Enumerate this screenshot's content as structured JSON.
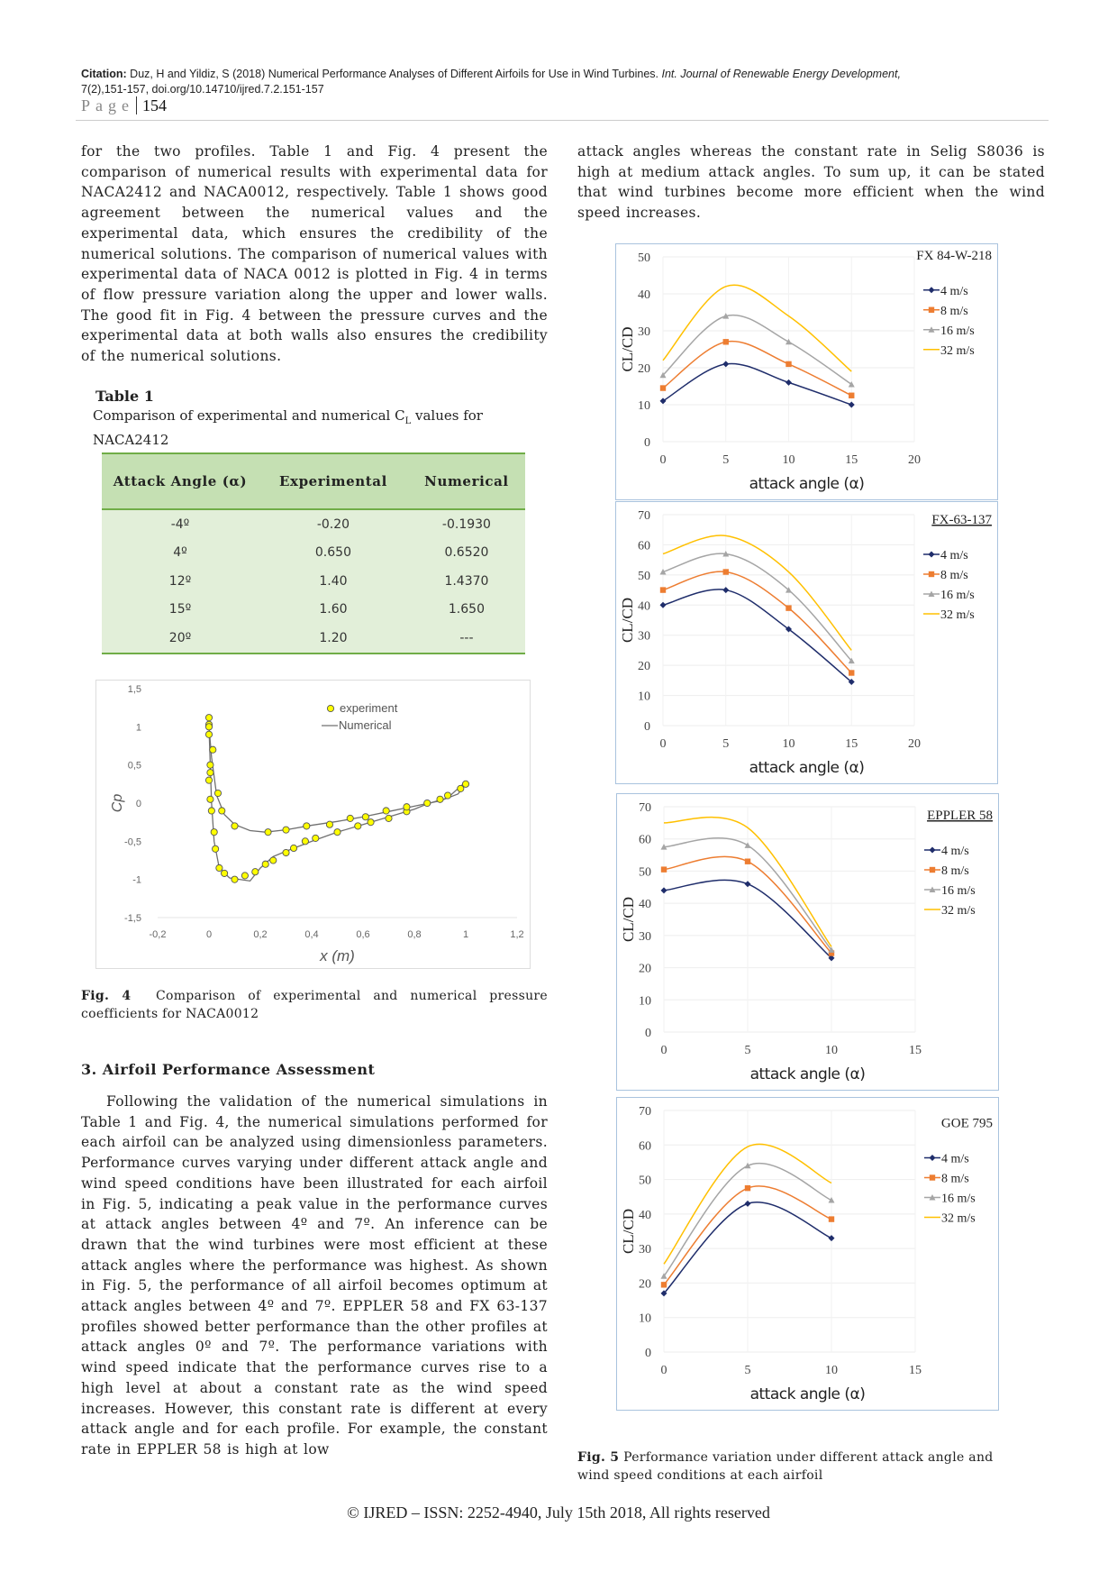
{
  "header": {
    "citation_label": "Citation:",
    "citation_text": "Duz, H and Yildiz, S (2018) Numerical Performance Analyses of Different Airfoils for Use in Wind Turbines.",
    "journal": "Int. Journal of Renewable Energy Development,",
    "citation_tail": "7(2),151-157, doi.org/10.14710/ijred.7.2.151-157",
    "page_label": "Page",
    "page_number": "154"
  },
  "left_paragraph": "for the two profiles. Table 1 and Fig. 4 present the comparison of numerical results with experimental data for NACA2412 and NACA0012, respectively. Table 1 shows good agreement between the numerical values and the experimental data, which ensures the credibility of the numerical solutions. The comparison of numerical values with experimental data of NACA 0012 is plotted in Fig. 4 in terms of flow pressure variation along the upper and lower walls. The good fit in Fig. 4 between the pressure curves and the experimental data at both walls also ensures the credibility of the numerical solutions.",
  "table1": {
    "label": "Table 1",
    "caption": "Comparison of experimental and numerical C",
    "caption_sub": "L",
    "caption_tail": " values for NACA2412",
    "headers": [
      "Attack Angle (α)",
      "Experimental",
      "Numerical"
    ],
    "rows": [
      [
        "-4º",
        "-0.20",
        "-0.1930"
      ],
      [
        "4º",
        "0.650",
        "0.6520"
      ],
      [
        "12º",
        "1.40",
        "1.4370"
      ],
      [
        "15º",
        "1.60",
        "1.650"
      ],
      [
        "20º",
        "1.20",
        "---"
      ]
    ]
  },
  "fig4_caption_label": "Fig. 4",
  "fig4_caption": "Comparison of experimental and numerical pressure coefficients for NACA0012",
  "section_heading": "3. Airfoil Performance Assessment",
  "section_paragraph": "Following the validation of the numerical simulations in Table 1 and Fig. 4, the numerical simulations performed for each airfoil can be analyzed using dimensionless parameters. Performance curves varying under different attack angle and wind speed conditions have been illustrated for each airfoil in Fig. 5, indicating a peak value in the performance curves at attack angles between 4º and 7º. An inference can be drawn that the wind turbines were most efficient at these attack angles where the performance was highest. As shown in Fig. 5, the performance of all airfoil becomes optimum at attack angles between 4º and 7º. EPPLER 58 and FX 63-137 profiles showed better performance than the other profiles at attack angles 0º and 7º. The performance variations with wind speed indicate that the performance curves rise to a high level at about a constant rate as the wind speed increases. However, this constant rate is different at every attack angle and for each profile. For example, the constant rate in EPPLER 58 is high at low",
  "right_paragraph": "attack angles whereas the constant rate in Selig S8036 is high at medium attack angles. To sum up, it can be stated that wind turbines become more efficient when the wind speed increases.",
  "fig5_caption_label": "Fig. 5",
  "fig5_caption": "Performance variation under different attack angle and wind speed conditions at each airfoil",
  "footer": "© IJRED – ISSN: 2252-4940, July 15th 2018, All rights reserved",
  "chart_data": [
    {
      "type": "scatter",
      "xlabel": "x (m)",
      "ylabel": "Cp",
      "xlim": [
        -0.2,
        1.2
      ],
      "ylim": [
        -1.5,
        1.5
      ],
      "xticks": [
        "-0,2",
        "0",
        "0,2",
        "0,4",
        "0,6",
        "0,8",
        "1",
        "1,2"
      ],
      "yticks": [
        "1,5",
        "1",
        "0,5",
        "0",
        "-0,5",
        "-1",
        "-1,5"
      ],
      "grid": false,
      "legend_position": "top-right",
      "marker_color": "#ffff00",
      "line_color": "#707070",
      "series": [
        {
          "name": "experiment",
          "kind": "markers",
          "points": [
            [
              0,
              1.12
            ],
            [
              0,
              1.03
            ],
            [
              0,
              1.0
            ],
            [
              0,
              0.9
            ],
            [
              0.015,
              0.7
            ],
            [
              0.005,
              0.5
            ],
            [
              0.005,
              0.4
            ],
            [
              0,
              0.3
            ],
            [
              0.005,
              0.05
            ],
            [
              0.01,
              -0.1
            ],
            [
              0.02,
              -0.38
            ],
            [
              0.025,
              -0.6
            ],
            [
              0.04,
              -0.85
            ],
            [
              0.06,
              -0.92
            ],
            [
              0.1,
              -1.0
            ],
            [
              0.14,
              -0.95
            ],
            [
              0.18,
              -0.9
            ],
            [
              0.22,
              -0.8
            ],
            [
              0.25,
              -0.75
            ],
            [
              0.3,
              -0.65
            ],
            [
              0.33,
              -0.59
            ],
            [
              0.375,
              -0.5
            ],
            [
              0.415,
              -0.46
            ],
            [
              0.5,
              -0.38
            ],
            [
              0.58,
              -0.3
            ],
            [
              0.63,
              -0.25
            ],
            [
              0.7,
              -0.2
            ],
            [
              0.77,
              -0.11
            ],
            [
              0.85,
              0.0
            ],
            [
              0.9,
              0.05
            ],
            [
              0.93,
              0.1
            ],
            [
              0.98,
              0.19
            ],
            [
              1.0,
              0.25
            ],
            [
              0.035,
              0.13
            ],
            [
              0.05,
              -0.1
            ],
            [
              0.1,
              -0.3
            ],
            [
              0.23,
              -0.38
            ],
            [
              0.3,
              -0.35
            ],
            [
              0.38,
              -0.3
            ],
            [
              0.47,
              -0.28
            ],
            [
              0.55,
              -0.2
            ],
            [
              0.61,
              -0.18
            ],
            [
              0.69,
              -0.1
            ],
            [
              0.77,
              -0.05
            ]
          ]
        },
        {
          "name": "Numerical",
          "kind": "line",
          "branches": [
            [
              [
                0,
                1.0
              ],
              [
                0.005,
                0.5
              ],
              [
                0.01,
                0.0
              ],
              [
                0.02,
                -0.5
              ],
              [
                0.04,
                -0.85
              ],
              [
                0.08,
                -0.98
              ],
              [
                0.16,
                -1.02
              ],
              [
                0.2,
                -0.85
              ],
              [
                0.25,
                -0.7
              ],
              [
                0.3,
                -0.63
              ],
              [
                0.4,
                -0.5
              ],
              [
                0.5,
                -0.38
              ],
              [
                0.6,
                -0.28
              ],
              [
                0.7,
                -0.18
              ],
              [
                0.8,
                -0.08
              ],
              [
                0.85,
                -0.01
              ],
              [
                0.93,
                0.07
              ],
              [
                1.0,
                0.28
              ]
            ],
            [
              [
                0,
                1.0
              ],
              [
                0.01,
                0.6
              ],
              [
                0.03,
                0.1
              ],
              [
                0.06,
                -0.15
              ],
              [
                0.1,
                -0.28
              ],
              [
                0.16,
                -0.36
              ],
              [
                0.22,
                -0.38
              ],
              [
                0.3,
                -0.35
              ],
              [
                0.4,
                -0.29
              ],
              [
                0.5,
                -0.24
              ],
              [
                0.6,
                -0.18
              ],
              [
                0.7,
                -0.11
              ],
              [
                0.8,
                -0.04
              ],
              [
                0.9,
                0.03
              ],
              [
                0.97,
                0.12
              ],
              [
                1.0,
                0.25
              ]
            ]
          ]
        }
      ]
    },
    {
      "type": "line",
      "title": "FX 84-W-218",
      "title_underlined": false,
      "xlabel": "attack angle (α)",
      "ylabel": "CL/CD",
      "x": [
        0,
        5,
        10,
        15
      ],
      "xlim": [
        0,
        20
      ],
      "ylim": [
        0,
        50
      ],
      "xticks": [
        0,
        5,
        10,
        15,
        20
      ],
      "yticks": [
        0,
        10,
        20,
        30,
        40,
        50
      ],
      "grid": true,
      "legend_position": "right",
      "series": [
        {
          "name": "4 m/s",
          "color": "#1f2d6b",
          "marker": "diamond",
          "values": [
            11,
            21,
            16,
            10
          ]
        },
        {
          "name": "8 m/s",
          "color": "#ed7d31",
          "marker": "square",
          "values": [
            14.5,
            27,
            21,
            12.5
          ]
        },
        {
          "name": "16 m/s",
          "color": "#a5a5a5",
          "marker": "triangle",
          "values": [
            18,
            34,
            27,
            15.5
          ]
        },
        {
          "name": "32 m/s",
          "color": "#ffc000",
          "marker": "none",
          "values": [
            22,
            42,
            34,
            19
          ]
        }
      ]
    },
    {
      "type": "line",
      "title": "FX-63-137",
      "title_underlined": true,
      "xlabel": "attack angle (α)",
      "ylabel": "CL/CD",
      "x": [
        0,
        5,
        10,
        15
      ],
      "xlim": [
        0,
        20
      ],
      "ylim": [
        0,
        70
      ],
      "xticks": [
        0,
        5,
        10,
        15,
        20
      ],
      "yticks": [
        0,
        10,
        20,
        30,
        40,
        50,
        60,
        70
      ],
      "grid": true,
      "legend_position": "right",
      "series": [
        {
          "name": "4 m/s",
          "color": "#1f2d6b",
          "marker": "diamond",
          "values": [
            40,
            45,
            32,
            14.5
          ]
        },
        {
          "name": "8 m/s",
          "color": "#ed7d31",
          "marker": "square",
          "values": [
            45,
            51,
            39,
            17.5
          ]
        },
        {
          "name": "16 m/s",
          "color": "#a5a5a5",
          "marker": "triangle",
          "values": [
            51,
            57,
            45,
            21.5
          ]
        },
        {
          "name": "32 m/s",
          "color": "#ffc000",
          "marker": "none",
          "values": [
            57,
            63,
            51,
            25
          ]
        }
      ]
    },
    {
      "type": "line",
      "title": "EPPLER 58",
      "title_underlined": true,
      "xlabel": "attack angle (α)",
      "ylabel": "CL/CD",
      "x": [
        0,
        5,
        10
      ],
      "xlim": [
        0,
        15
      ],
      "ylim": [
        0,
        70
      ],
      "xticks": [
        0,
        5,
        10,
        15
      ],
      "yticks": [
        0,
        10,
        20,
        30,
        40,
        50,
        60,
        70
      ],
      "grid": true,
      "legend_position": "right",
      "series": [
        {
          "name": "4 m/s",
          "color": "#1f2d6b",
          "marker": "diamond",
          "values": [
            44,
            46,
            23
          ]
        },
        {
          "name": "8 m/s",
          "color": "#ed7d31",
          "marker": "square",
          "values": [
            50.5,
            53,
            24.5
          ]
        },
        {
          "name": "16 m/s",
          "color": "#a5a5a5",
          "marker": "triangle",
          "values": [
            57.5,
            58,
            25.5
          ]
        },
        {
          "name": "32 m/s",
          "color": "#ffc000",
          "marker": "none",
          "values": [
            65,
            63.5,
            26.5
          ]
        }
      ]
    },
    {
      "type": "line",
      "title": "GOE 795",
      "title_underlined": false,
      "xlabel": "attack angle (α)",
      "ylabel": "CL/CD",
      "x": [
        0,
        5,
        10
      ],
      "xlim": [
        0,
        15
      ],
      "ylim": [
        0,
        70
      ],
      "xticks": [
        0,
        5,
        10,
        15
      ],
      "yticks": [
        0,
        10,
        20,
        30,
        40,
        50,
        60,
        70
      ],
      "grid": true,
      "legend_position": "right",
      "series": [
        {
          "name": "4 m/s",
          "color": "#1f2d6b",
          "marker": "diamond",
          "values": [
            17,
            43,
            33
          ]
        },
        {
          "name": "8 m/s",
          "color": "#ed7d31",
          "marker": "square",
          "values": [
            19.5,
            47.5,
            38.5
          ]
        },
        {
          "name": "16 m/s",
          "color": "#a5a5a5",
          "marker": "triangle",
          "values": [
            22,
            54,
            44
          ]
        },
        {
          "name": "32 m/s",
          "color": "#ffc000",
          "marker": "none",
          "values": [
            25.5,
            59.5,
            49
          ]
        }
      ]
    }
  ]
}
